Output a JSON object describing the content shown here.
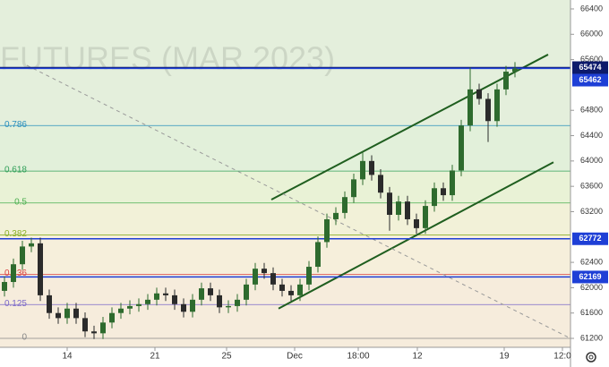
{
  "chart_data": {
    "type": "candlestick",
    "watermark": "FUTURES (MAR 2023)",
    "up_color": "#2e6b2e",
    "down_color": "#2b2b2b",
    "xlim": [
      -0.5,
      63.2
    ],
    "ylim": [
      61059,
      66541
    ],
    "xticks": [
      {
        "value": 7,
        "label": "14"
      },
      {
        "value": 16.8,
        "label": "21"
      },
      {
        "value": 24.8,
        "label": "25"
      },
      {
        "value": 32.4,
        "label": "Dec"
      },
      {
        "value": 39.5,
        "label": "18:00"
      },
      {
        "value": 46.1,
        "label": "12"
      },
      {
        "value": 55.8,
        "label": "19"
      },
      {
        "value": 62.3,
        "label": "12:0"
      }
    ],
    "yticks": [
      61200,
      61600,
      62000,
      62400,
      63200,
      63600,
      64000,
      64400,
      64800,
      65600,
      66000,
      66400
    ],
    "open": [
      61950,
      62090,
      62370,
      62650,
      62700,
      61880,
      61600,
      61520,
      61670,
      61520,
      61310,
      61280,
      61450,
      61600,
      61670,
      61710,
      61740,
      61810,
      61910,
      61880,
      61740,
      61620,
      61810,
      61990,
      61880,
      61690,
      61710,
      61810,
      62050,
      62300,
      62230,
      62050,
      61950,
      61880,
      62050,
      62330,
      62720,
      63080,
      63180,
      63430,
      63710,
      64000,
      63780,
      63500,
      63150,
      63360,
      63080,
      62940,
      63290,
      63570,
      63460,
      63850,
      64560,
      65130,
      64980,
      64630,
      65130,
      65410
    ],
    "high": [
      62180,
      62460,
      62740,
      62790,
      62790,
      61970,
      61690,
      61760,
      61760,
      61610,
      61400,
      61540,
      61690,
      61760,
      61800,
      61830,
      61900,
      62000,
      62000,
      61970,
      61830,
      61900,
      62080,
      62080,
      61970,
      61800,
      61900,
      62140,
      62390,
      62390,
      62320,
      62140,
      62040,
      62140,
      62420,
      62810,
      63170,
      63270,
      63520,
      63800,
      64150,
      64090,
      63870,
      63590,
      63450,
      63450,
      63170,
      63380,
      63660,
      63660,
      63940,
      64650,
      65474,
      65220,
      65070,
      65220,
      65500,
      65560
    ],
    "low": [
      61860,
      62000,
      62280,
      62560,
      61790,
      61510,
      61430,
      61430,
      61430,
      61220,
      61190,
      61190,
      61360,
      61510,
      61580,
      61620,
      61650,
      61720,
      61790,
      61650,
      61530,
      61530,
      61720,
      61790,
      61600,
      61600,
      61620,
      61720,
      61960,
      62140,
      61960,
      61860,
      61790,
      61790,
      61960,
      62240,
      62630,
      62990,
      63090,
      63340,
      63620,
      63690,
      63410,
      62900,
      63060,
      62990,
      62850,
      62850,
      63200,
      63370,
      63370,
      63760,
      64470,
      64890,
      64300,
      64540,
      65040,
      65320
    ],
    "close": [
      62090,
      62370,
      62650,
      62700,
      61880,
      61600,
      61520,
      61670,
      61520,
      61310,
      61280,
      61450,
      61600,
      61670,
      61710,
      61740,
      61810,
      61910,
      61880,
      61740,
      61620,
      61810,
      61990,
      61880,
      61690,
      61710,
      61810,
      62050,
      62300,
      62230,
      62050,
      61950,
      61880,
      62050,
      62330,
      62720,
      63080,
      63180,
      63430,
      63710,
      64000,
      63780,
      63500,
      63150,
      63360,
      63080,
      62940,
      63290,
      63570,
      63460,
      63850,
      64560,
      65130,
      64980,
      64630,
      65130,
      65410,
      65460
    ],
    "fib_levels": [
      {
        "label": "0.786",
        "price": 64559,
        "color": "#2a8fbd",
        "fill": "#e4efdc"
      },
      {
        "label": "0.618",
        "price": 63841,
        "color": "#33a05a",
        "fill": "#e2f0da"
      },
      {
        "label": "0.5",
        "price": 63337,
        "color": "#4caf50",
        "fill": "#e9f2d6"
      },
      {
        "label": "0.382",
        "price": 62833,
        "color": "#8bb02a",
        "fill": "#f2f1d8"
      },
      {
        "label": "0.236",
        "price": 62209,
        "color": "#d84343",
        "fill": "#f6efdb"
      },
      {
        "label": "0.125",
        "price": 61734,
        "color": "#7b68c8",
        "fill": "#f6ecdc"
      },
      {
        "label": "0",
        "price": 61200,
        "color": "#888888",
        "fill": "#f6ecdc"
      }
    ],
    "trend_lines": [
      {
        "color": "#1f5e1f",
        "x": [
          29.8,
          60.7
        ],
        "y": [
          63390,
          65680
        ]
      },
      {
        "color": "#1f5e1f",
        "x": [
          30.6,
          61.3
        ],
        "y": [
          61670,
          63980
        ]
      },
      {
        "color": "#999999",
        "dashed": true,
        "x": [
          2.5,
          63.2
        ],
        "y": [
          65510,
          61200
        ]
      }
    ],
    "price_markers": [
      {
        "value": 65474,
        "color": "#0d1a6b"
      },
      {
        "value": 65462,
        "color": "#1e3fd6"
      },
      {
        "value": 62772,
        "color": "#1e3fd6"
      },
      {
        "value": 62169,
        "color": "#1e3fd6"
      }
    ]
  }
}
